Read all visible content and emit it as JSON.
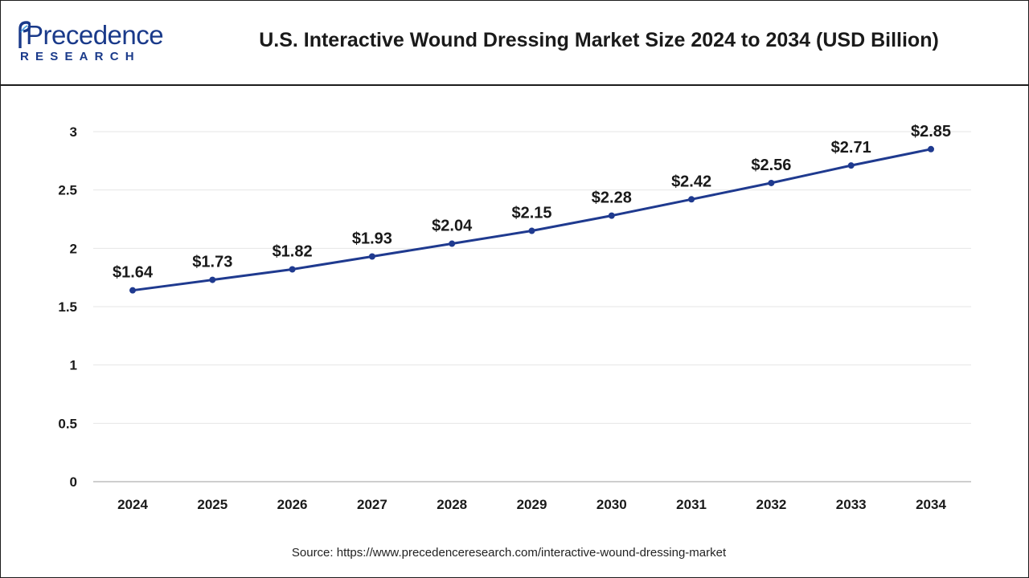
{
  "logo": {
    "name": "Precedence",
    "tagline": "RESEARCH"
  },
  "header": {
    "title": "U.S. Interactive Wound Dressing Market Size 2024 to 2034 (USD Billion)"
  },
  "colors": {
    "line": "#1f3a8f",
    "brand": "#1a3a8a",
    "grid": "#e6e6e6",
    "text": "#1a1a1a"
  },
  "chart_data": {
    "type": "line",
    "title": "U.S. Interactive Wound Dressing Market Size 2024 to 2034 (USD Billion)",
    "xlabel": "",
    "ylabel": "",
    "categories": [
      "2024",
      "2025",
      "2026",
      "2027",
      "2028",
      "2029",
      "2030",
      "2031",
      "2032",
      "2033",
      "2034"
    ],
    "series": [
      {
        "name": "Market Size",
        "values": [
          1.64,
          1.73,
          1.82,
          1.93,
          2.04,
          2.15,
          2.28,
          2.42,
          2.56,
          2.71,
          2.85
        ],
        "labels": [
          "$1.64",
          "$1.73",
          "$1.82",
          "$1.93",
          "$2.04",
          "$2.15",
          "$2.28",
          "$2.42",
          "$2.56",
          "$2.71",
          "$2.85"
        ]
      }
    ],
    "ylim": [
      0,
      3
    ],
    "yticks": [
      0,
      0.5,
      1,
      1.5,
      2,
      2.5,
      3
    ],
    "ytick_labels": [
      "0",
      "0.5",
      "1",
      "1.5",
      "2",
      "2.5",
      "3"
    ],
    "grid": true,
    "legend": "none"
  },
  "footer": {
    "source_prefix": "Source: ",
    "source_url": "https://www.precedenceresearch.com/interactive-wound-dressing-market"
  }
}
